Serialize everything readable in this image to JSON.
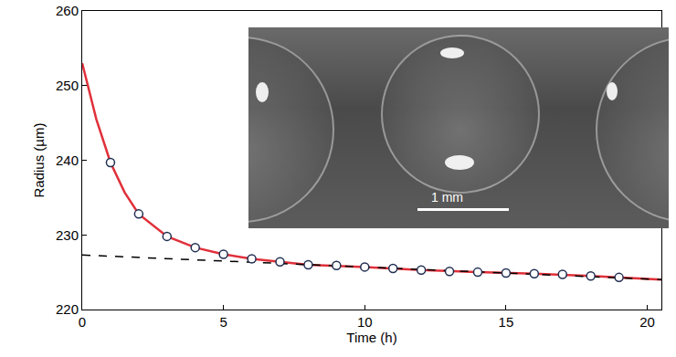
{
  "chart_data": {
    "type": "scatter",
    "x_label": "Time (h)",
    "y_label": "Radius (µm)",
    "xlim": [
      0,
      20.5
    ],
    "xticks": [
      0,
      5,
      10,
      15,
      20
    ],
    "ylim": [
      220,
      260
    ],
    "yticks": [
      220,
      230,
      240,
      250,
      260
    ],
    "grid": false,
    "series": [
      {
        "type": "line",
        "color": "#e0303a",
        "line_style": "solid",
        "x": [
          0,
          0.5,
          1,
          1.5,
          2,
          3,
          4,
          5,
          6,
          8,
          10,
          12,
          14,
          16,
          18,
          20.5
        ],
        "values": [
          253,
          245.5,
          239.7,
          235.7,
          232.8,
          229.8,
          228.3,
          227.4,
          226.8,
          226.0,
          225.7,
          225.3,
          225.0,
          224.8,
          224.5,
          224.0
        ]
      },
      {
        "type": "line",
        "color": "#000000",
        "line_style": "dash",
        "x": [
          0,
          20.5
        ],
        "values": [
          227.3,
          224.0
        ]
      },
      {
        "type": "scatter",
        "color": "#1f2d50",
        "marker": "circle",
        "x": [
          1,
          2,
          3,
          4,
          5,
          6,
          7,
          8,
          9,
          10,
          11,
          12,
          13,
          14,
          15,
          16,
          17,
          18,
          19
        ],
        "values": [
          239.7,
          232.8,
          229.8,
          228.3,
          227.4,
          226.8,
          226.4,
          226.0,
          225.9,
          225.7,
          225.5,
          225.3,
          225.1,
          225.0,
          224.9,
          224.8,
          224.7,
          224.5,
          224.3
        ]
      }
    ],
    "annotations": [
      {
        "text": "1 mm"
      }
    ]
  }
}
